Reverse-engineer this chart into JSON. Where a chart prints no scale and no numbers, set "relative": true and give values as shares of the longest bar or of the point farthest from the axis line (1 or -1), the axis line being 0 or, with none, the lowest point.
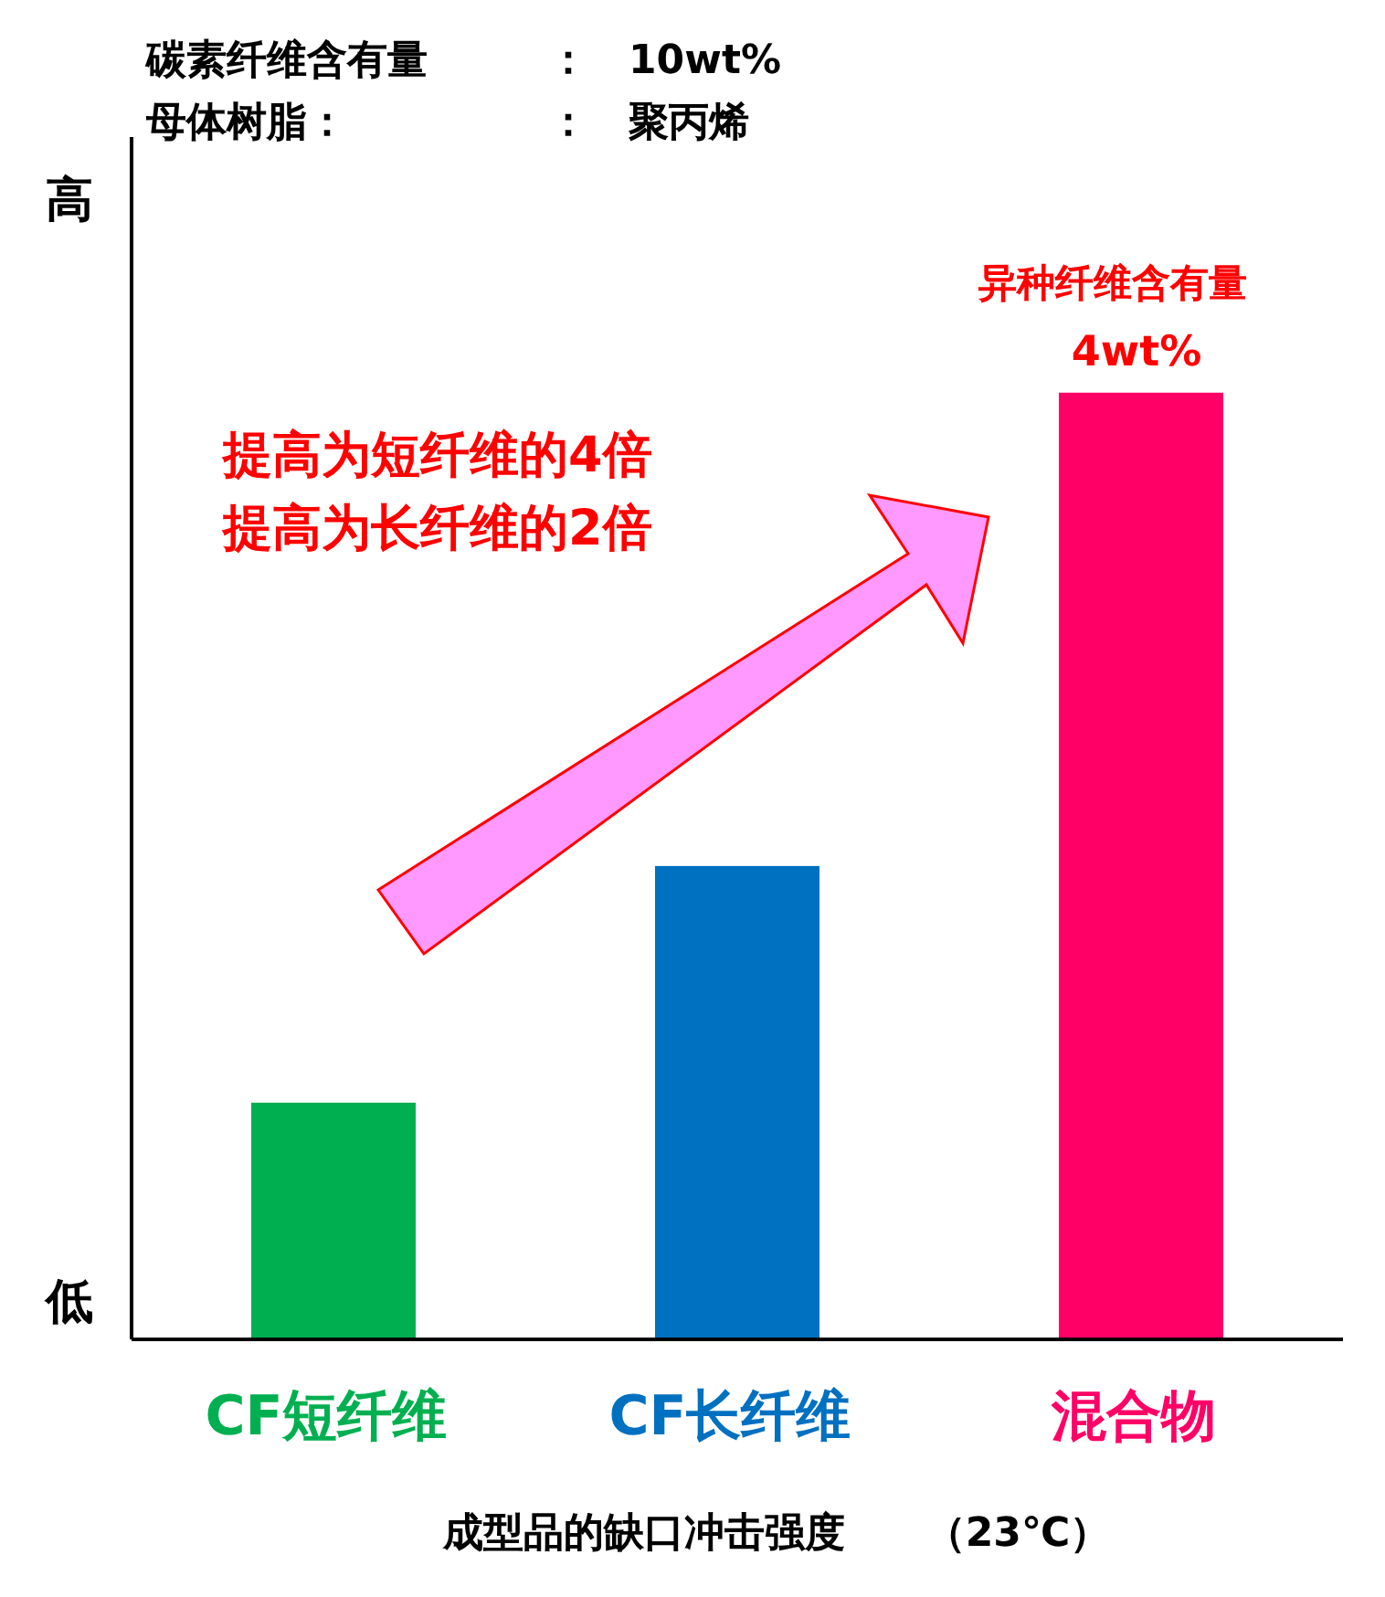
{
  "chart_data": {
    "type": "bar",
    "relative": true,
    "title": "碳素纤维含有量　　　：　10wt%",
    "subtitle": "母体树脂：　　　　　：　聚丙烯",
    "xlabel": "成型品的缺口冲击强度　　（23℃）",
    "categories": [
      "CF短纤维",
      "CF长纤维",
      "混合物"
    ],
    "values": [
      0.25,
      0.5,
      1
    ],
    "colors": [
      "#00b050",
      "#0070c0",
      "#ff0066"
    ],
    "annotations": [
      "高",
      "低",
      "提高为短纤维的4倍",
      "提高为长纤维的2倍",
      "异种纤维含有量",
      "4wt%"
    ]
  }
}
